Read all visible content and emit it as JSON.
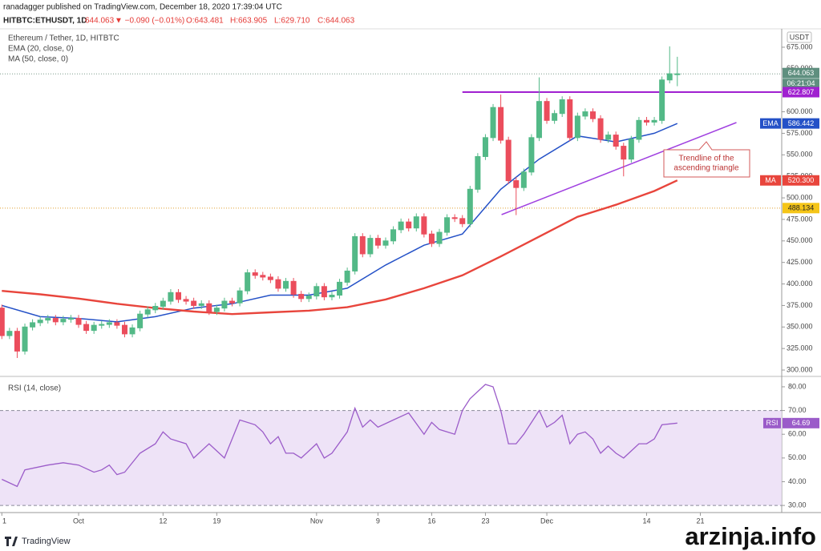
{
  "header": {
    "publisher": "ranadagger published on TradingView.com, December 18, 2020 17:39:04 UTC",
    "symbol": "HITBTC:ETHUSDT, 1D",
    "last": "644.063",
    "change": "▼ −0.090 (−0.01%)",
    "ohlc": [
      "O:643.481",
      "H:663.905",
      "L:629.710",
      "C:644.063"
    ]
  },
  "footer": {
    "brand": "TradingView",
    "watermark": "arzinja.info"
  },
  "chart_data": [
    {
      "type": "candlestick",
      "title": "Ethereum / Tether, 1D, HITBTC",
      "currency": "USDT",
      "countdown": "06:21:04",
      "up_color": "#53b987",
      "down_color": "#eb4d5c",
      "grid": false,
      "x": [
        -10,
        -9,
        -8,
        -7,
        -6,
        -5,
        -4,
        -3,
        -2,
        -1,
        0,
        1,
        2,
        3,
        4,
        5,
        6,
        7,
        8,
        9,
        10,
        11,
        12,
        13,
        14,
        15,
        16,
        17,
        18,
        19,
        20,
        21,
        22,
        23,
        24,
        25,
        26,
        27,
        28,
        29,
        30,
        31,
        32,
        33,
        34,
        35,
        36,
        37,
        38,
        39,
        40,
        41,
        42,
        43,
        44,
        45,
        46,
        47,
        48,
        49,
        50,
        51,
        52,
        53,
        54,
        55,
        56,
        57,
        58,
        59,
        60,
        61,
        62,
        63,
        64,
        65,
        66,
        67,
        68,
        69,
        70,
        71,
        72,
        73,
        74,
        75,
        76,
        77,
        78
      ],
      "open": [
        372,
        340,
        345,
        322,
        350,
        355,
        358,
        360,
        356,
        359,
        360,
        353,
        346,
        352,
        353,
        355,
        352,
        342,
        349,
        365,
        370,
        374,
        380,
        390,
        382,
        380,
        375,
        377,
        368,
        372,
        380,
        378,
        392,
        413,
        410,
        408,
        405,
        395,
        403,
        388,
        383,
        386,
        397,
        385,
        387,
        402,
        415,
        455,
        435,
        453,
        445,
        450,
        463,
        472,
        465,
        478,
        458,
        447,
        460,
        477,
        476,
        470,
        510,
        548,
        570,
        605,
        567,
        520,
        512,
        530,
        570,
        612,
        590,
        598,
        614,
        570,
        595,
        600,
        592,
        568,
        573,
        560,
        545,
        568,
        590,
        588,
        590,
        637,
        643.481
      ],
      "high": [
        376,
        349,
        349,
        354,
        359,
        362,
        364,
        364,
        363,
        364,
        364,
        357,
        356,
        357,
        359,
        359,
        356,
        353,
        369,
        374,
        378,
        384,
        394,
        394,
        386,
        384,
        381,
        381,
        376,
        384,
        384,
        396,
        417,
        417,
        414,
        412,
        409,
        407,
        407,
        392,
        390,
        401,
        401,
        391,
        406,
        419,
        459,
        459,
        457,
        457,
        454,
        467,
        476,
        476,
        482,
        482,
        462,
        464,
        481,
        481,
        480,
        514,
        552,
        574,
        609,
        620,
        571,
        524,
        534,
        574,
        640,
        616,
        602,
        618,
        618,
        599,
        604,
        604,
        596,
        577,
        577,
        564,
        572,
        594,
        594,
        594,
        641,
        676,
        663.905
      ],
      "low": [
        336,
        336,
        314,
        318,
        346,
        351,
        354,
        352,
        352,
        355,
        349,
        342,
        342,
        348,
        349,
        348,
        338,
        338,
        345,
        361,
        366,
        370,
        376,
        378,
        376,
        371,
        371,
        364,
        364,
        368,
        374,
        374,
        388,
        406,
        404,
        401,
        391,
        391,
        384,
        379,
        379,
        382,
        381,
        381,
        383,
        398,
        411,
        431,
        431,
        441,
        441,
        446,
        459,
        461,
        461,
        454,
        443,
        443,
        456,
        472,
        466,
        466,
        506,
        544,
        566,
        563,
        516,
        480,
        508,
        526,
        566,
        586,
        586,
        594,
        566,
        566,
        591,
        588,
        564,
        564,
        556,
        525,
        541,
        564,
        584,
        584,
        586,
        633,
        629.71
      ],
      "close": [
        340,
        345,
        322,
        350,
        355,
        358,
        360,
        356,
        359,
        360,
        353,
        346,
        352,
        353,
        355,
        352,
        342,
        349,
        365,
        370,
        374,
        380,
        390,
        382,
        380,
        375,
        377,
        368,
        372,
        380,
        378,
        392,
        413,
        410,
        408,
        405,
        395,
        403,
        388,
        383,
        386,
        397,
        385,
        387,
        402,
        415,
        455,
        435,
        453,
        445,
        450,
        463,
        472,
        465,
        478,
        458,
        447,
        460,
        477,
        476,
        470,
        510,
        548,
        570,
        605,
        567,
        520,
        512,
        530,
        570,
        612,
        590,
        598,
        614,
        570,
        595,
        600,
        592,
        568,
        573,
        560,
        545,
        568,
        590,
        588,
        590,
        637,
        644.153,
        644.063
      ],
      "series": [
        {
          "name": "EMA (20, close, 0)",
          "badge": "EMA",
          "color": "#2451c7",
          "x": [
            -10,
            -5,
            0,
            5,
            10,
            15,
            20,
            25,
            30,
            35,
            40,
            45,
            50,
            55,
            60,
            65,
            70,
            75,
            78
          ],
          "values": [
            375,
            362,
            360,
            356,
            362,
            372,
            377,
            387,
            387,
            395,
            422,
            445,
            458,
            510,
            545,
            572,
            565,
            575,
            586.442
          ]
        },
        {
          "name": "MA (50, close, 0)",
          "badge": "MA",
          "color": "#e8453c",
          "x": [
            -10,
            -5,
            0,
            5,
            10,
            15,
            20,
            25,
            30,
            35,
            40,
            45,
            50,
            55,
            60,
            65,
            70,
            75,
            78
          ],
          "values": [
            392,
            388,
            383,
            377,
            372,
            368,
            365,
            367,
            369,
            373,
            382,
            395,
            410,
            432,
            455,
            478,
            492,
            508,
            520.3
          ],
          "value_labels": [
            null,
            null,
            null,
            null,
            null,
            null,
            null,
            null,
            null,
            null,
            null,
            null,
            null,
            null,
            null,
            null,
            null,
            null,
            "520.300"
          ]
        }
      ],
      "resistance": {
        "value": 622.807,
        "x": 50,
        "color": "#a020d0"
      },
      "trendline": {
        "x": [
          55.1,
          85.7
        ],
        "values": [
          480.5,
          587.5
        ],
        "color": "#a040e0"
      },
      "level": {
        "value": 488.134,
        "color": "#f5c518"
      },
      "annotation": [
        "Trendline of the",
        "ascending triangle"
      ],
      "xlim": [
        -10.24,
        91.6
      ],
      "xticks": [
        {
          "value": -10,
          "label": "1"
        },
        {
          "value": 0,
          "label": "Oct"
        },
        {
          "value": 11,
          "label": "12"
        },
        {
          "value": 18,
          "label": "19"
        },
        {
          "value": 31,
          "label": "Nov"
        },
        {
          "value": 39,
          "label": "9"
        },
        {
          "value": 46,
          "label": "16"
        },
        {
          "value": 53,
          "label": "23"
        },
        {
          "value": 61,
          "label": "Dec"
        },
        {
          "value": 74,
          "label": "14"
        },
        {
          "value": 81,
          "label": "21"
        }
      ],
      "ylim": [
        292.6,
        694.5
      ],
      "yticks": [
        {
          "value": 300,
          "label": "300.000"
        },
        {
          "value": 325,
          "label": "325.000"
        },
        {
          "value": 350,
          "label": "350.000"
        },
        {
          "value": 375,
          "label": "375.000"
        },
        {
          "value": 400,
          "label": "400.000"
        },
        {
          "value": 425,
          "label": "425.000"
        },
        {
          "value": 450,
          "label": "450.000"
        },
        {
          "value": 475,
          "label": "475.000"
        },
        {
          "value": 500,
          "label": "500.000"
        },
        {
          "value": 525,
          "label": "525.000"
        },
        {
          "value": 550,
          "label": "550.000"
        },
        {
          "value": 575,
          "label": "575.000"
        },
        {
          "value": 600,
          "label": "600.000"
        },
        {
          "value": 625,
          "label": "625.000"
        },
        {
          "value": 650,
          "label": "650.000"
        },
        {
          "value": 675,
          "label": "675.000"
        }
      ]
    },
    {
      "type": "line",
      "title": "RSI (14, close)",
      "badge": "RSI",
      "color": "#9b5cc9",
      "band": [
        30,
        70
      ],
      "band_color": "#eadcf5",
      "x": [
        -10,
        -8,
        -7,
        -4,
        -2,
        0,
        2,
        3,
        4,
        5,
        6,
        8,
        10,
        11,
        12,
        14,
        15,
        17,
        19,
        21,
        23,
        24,
        25,
        26,
        27,
        28,
        29,
        31,
        32,
        33,
        35,
        36,
        37,
        38,
        39,
        41,
        43,
        45,
        46,
        47,
        49,
        50,
        51,
        53,
        54,
        55,
        56,
        57,
        58,
        60,
        61,
        62,
        63,
        64,
        65,
        66,
        67,
        68,
        69,
        70,
        71,
        73,
        74,
        75,
        76,
        78
      ],
      "values": [
        41,
        38,
        45,
        47,
        48,
        47,
        44,
        45,
        47,
        43,
        44,
        52,
        56,
        61,
        58,
        56,
        50,
        56,
        50,
        66,
        64,
        61,
        56,
        59,
        52,
        52,
        50,
        56,
        50,
        52,
        61,
        71,
        63,
        66,
        63,
        66,
        69,
        60,
        65,
        62,
        60,
        70,
        75,
        81,
        80,
        70,
        56,
        56,
        60,
        70,
        63,
        65,
        68,
        56,
        60,
        61,
        58,
        52,
        55,
        52,
        50,
        56,
        56,
        58,
        64,
        64.69
      ],
      "xlim": [
        -10.24,
        91.6
      ],
      "ylim": [
        27,
        83.7
      ],
      "yticks": [
        {
          "value": 30,
          "label": "30.00"
        },
        {
          "value": 40,
          "label": "40.00"
        },
        {
          "value": 50,
          "label": "50.00"
        },
        {
          "value": 60,
          "label": "60.00"
        },
        {
          "value": 70,
          "label": "70.00"
        },
        {
          "value": 80,
          "label": "80.00"
        }
      ]
    }
  ]
}
